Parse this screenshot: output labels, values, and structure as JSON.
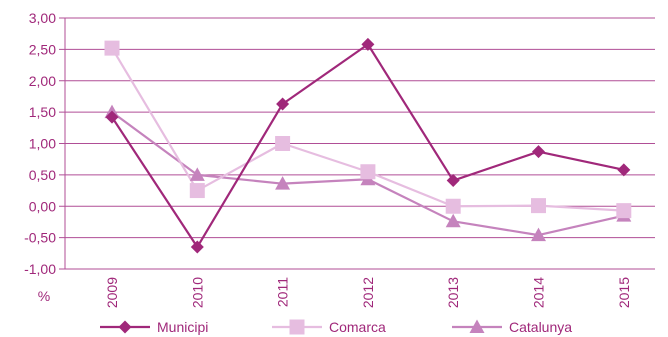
{
  "chart_data": {
    "type": "line",
    "title": "",
    "xlabel": "",
    "ylabel": "%",
    "categories": [
      "2009",
      "2010",
      "2011",
      "2012",
      "2013",
      "2014",
      "2015"
    ],
    "ylim": [
      -1.0,
      3.0
    ],
    "y_ticks": [
      3.0,
      2.5,
      2.0,
      1.5,
      1.0,
      0.5,
      0.0,
      -0.5,
      -1.0
    ],
    "y_tick_labels": [
      "3,00",
      "2,50",
      "2,00",
      "1,50",
      "1,00",
      "0,50",
      "0,00",
      "-0,50",
      "-1,00"
    ],
    "grid": "horizontal",
    "legend_position": "bottom",
    "series": [
      {
        "name": "Municipi",
        "marker": "diamond",
        "color": "#a0287a",
        "values": [
          1.42,
          -0.65,
          1.63,
          2.58,
          0.41,
          0.87,
          0.58
        ]
      },
      {
        "name": "Comarca",
        "marker": "square",
        "color": "#e6bde0",
        "values": [
          2.52,
          0.25,
          1.0,
          0.55,
          0.0,
          0.01,
          -0.07
        ]
      },
      {
        "name": "Catalunya",
        "marker": "triangle",
        "color": "#c583bd",
        "values": [
          1.5,
          0.5,
          0.36,
          0.43,
          -0.24,
          -0.46,
          -0.15
        ]
      }
    ]
  }
}
